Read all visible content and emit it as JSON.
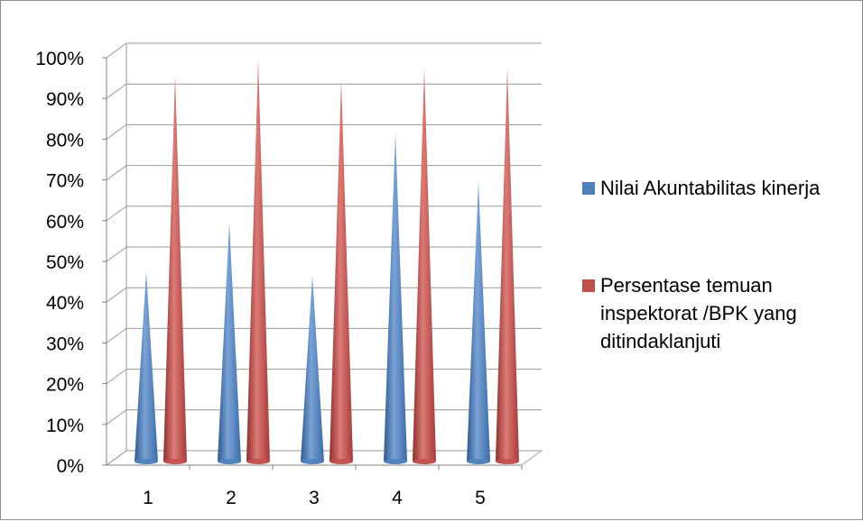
{
  "chart_data": {
    "type": "bar",
    "subtype": "3d-cone",
    "categories": [
      "1",
      "2",
      "3",
      "4",
      "5"
    ],
    "series": [
      {
        "name": "Nilai Akuntabilitas kinerja",
        "color": "#4f81bd",
        "values": [
          48,
          60,
          47,
          82,
          70
        ]
      },
      {
        "name": "Persentase temuan inspektorat /BPK yang ditindaklanjuti",
        "color": "#c0504d",
        "values": [
          96,
          100,
          95,
          98,
          98
        ]
      }
    ],
    "yticks": [
      "0%",
      "10%",
      "20%",
      "30%",
      "40%",
      "50%",
      "60%",
      "70%",
      "80%",
      "90%",
      "100%"
    ],
    "ylim": [
      0,
      100
    ],
    "grid": true,
    "legend_position": "right"
  }
}
